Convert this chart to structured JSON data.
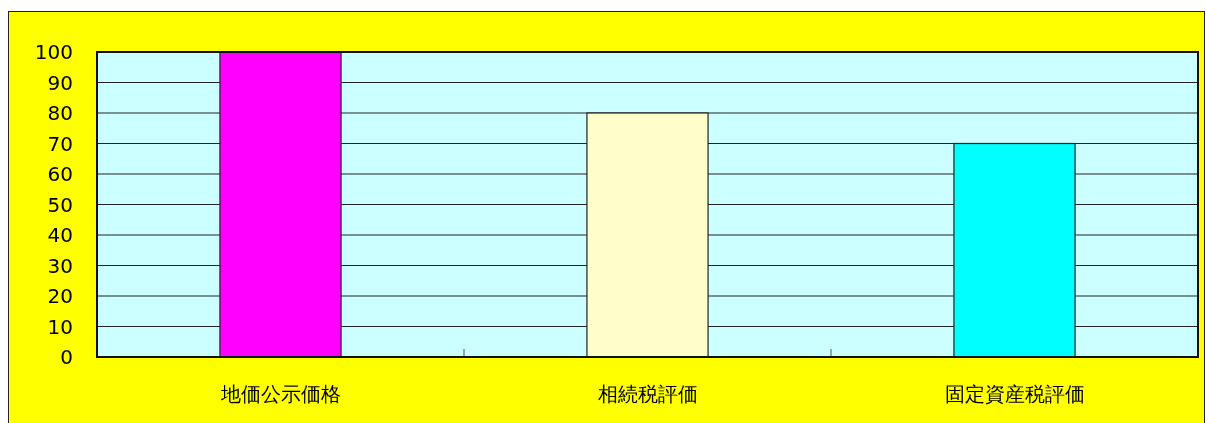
{
  "chart_data": {
    "type": "bar",
    "categories": [
      "地価公示価格",
      "相続税評価",
      "固定資産税評価"
    ],
    "values": [
      100,
      80,
      70
    ],
    "colors": [
      "#ff00ff",
      "#ffffcc",
      "#00ffff"
    ],
    "ylim": [
      0,
      100
    ],
    "yticks": [
      0,
      10,
      20,
      30,
      40,
      50,
      60,
      70,
      80,
      90,
      100
    ],
    "grid": "y"
  }
}
